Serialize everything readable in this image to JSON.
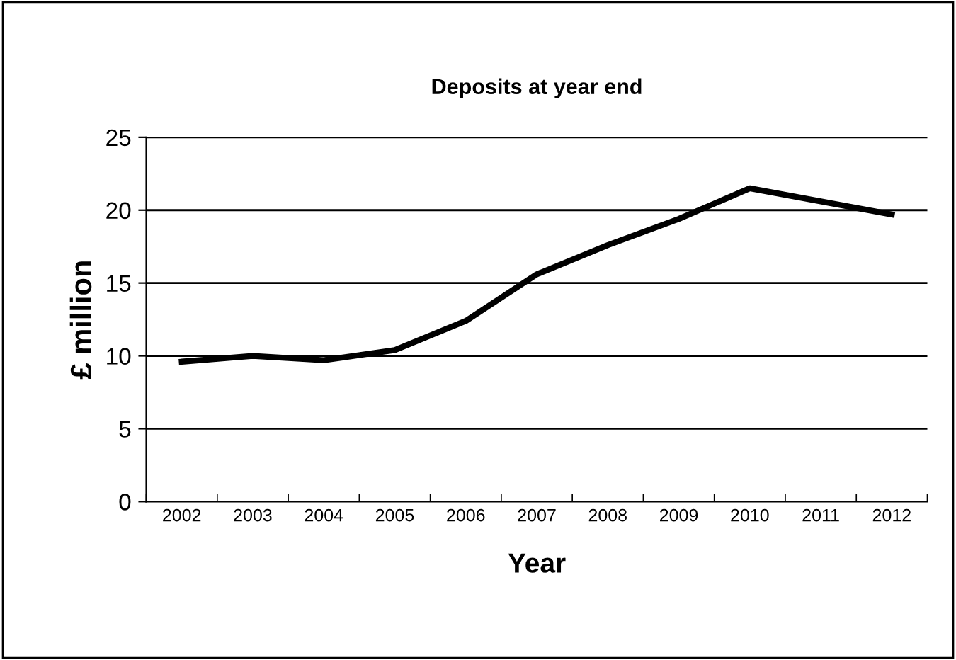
{
  "chart_data": {
    "type": "line",
    "title": "Deposits at year end",
    "xlabel": "Year",
    "ylabel": "£ million",
    "categories": [
      "2002",
      "2003",
      "2004",
      "2005",
      "2006",
      "2007",
      "2008",
      "2009",
      "2010",
      "2011",
      "2012"
    ],
    "series": [
      {
        "color": "#000000",
        "values": [
          9.6,
          10.0,
          9.7,
          10.4,
          12.4,
          15.6,
          17.6,
          19.4,
          21.5,
          20.6,
          19.7
        ]
      }
    ],
    "ylim": [
      0,
      25
    ],
    "yticks": [
      0,
      5,
      10,
      15,
      20,
      25
    ],
    "grid": "y",
    "marker": "none",
    "line_style": "solid",
    "legend": false
  }
}
